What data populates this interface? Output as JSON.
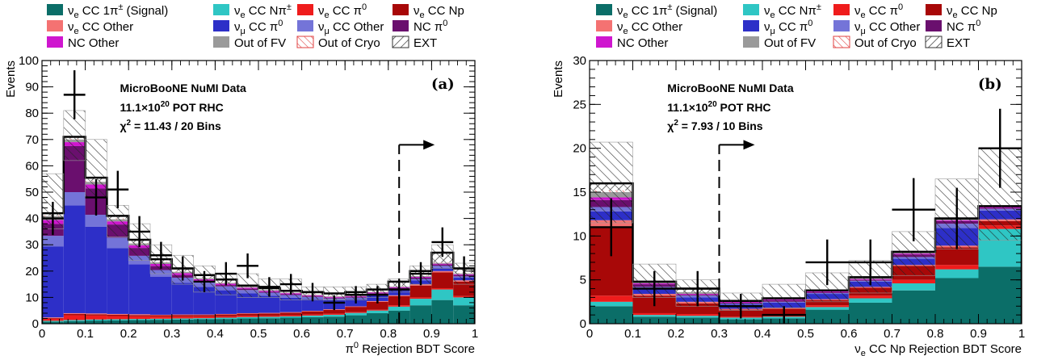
{
  "colors": {
    "sig": "#0b6e68",
    "ccNpi": "#2fc6c4",
    "ccPi0": "#ef1c1c",
    "ccNp": "#a80808",
    "ccOther": "#f47272",
    "numuPi0": "#2d2fc8",
    "numuOther": "#7474d8",
    "ncPi0": "#6a0f6e",
    "ncOther": "#cf16cf",
    "oofv": "#9a9a9a",
    "ooc": "#e04040",
    "ext": "#333333"
  },
  "legend": [
    {
      "key": "sig",
      "label": "νe CC 1π± (Signal)",
      "style": "solid"
    },
    {
      "key": "ccNpi",
      "label": "νe CC Nπ±",
      "style": "solid"
    },
    {
      "key": "ccPi0",
      "label": "νe CC   π0",
      "style": "solid"
    },
    {
      "key": "ccNp",
      "label": "νe CC Np",
      "style": "solid"
    },
    {
      "key": "ccOther",
      "label": "νe CC Other",
      "style": "solid"
    },
    {
      "key": "numuPi0",
      "label": "νμ CC   π0",
      "style": "solid"
    },
    {
      "key": "numuOther",
      "label": "νμ CC Other",
      "style": "solid"
    },
    {
      "key": "ncPi0",
      "label": "NC   π0",
      "style": "solid"
    },
    {
      "key": "ncOther",
      "label": "NC Other",
      "style": "solid"
    },
    {
      "key": "oofv",
      "label": "Out of FV",
      "style": "solid"
    },
    {
      "key": "ooc",
      "label": "Out of Cryo",
      "style": "hatch-red"
    },
    {
      "key": "ext",
      "label": "EXT",
      "style": "hatch-black"
    }
  ],
  "chart_data": [
    {
      "type": "bar",
      "panel": "(a)",
      "xlabel": "π0 Rejection BDT Score",
      "ylabel": "Events",
      "xlim": [
        0,
        1
      ],
      "ylim": [
        0,
        100
      ],
      "yticks": [
        0,
        10,
        20,
        30,
        40,
        50,
        60,
        70,
        80,
        90,
        100
      ],
      "xticks": [
        0,
        0.1,
        0.2,
        0.3,
        0.4,
        0.5,
        0.6,
        0.7,
        0.8,
        0.9,
        1
      ],
      "annotations": [
        "MicroBooNE NuMI Data",
        "11.1×10^20 POT RHC",
        "χ2 = 11.43 / 20 Bins"
      ],
      "cut": 0.825,
      "bin_edges": [
        0,
        0.05,
        0.1,
        0.15,
        0.2,
        0.25,
        0.3,
        0.35,
        0.4,
        0.45,
        0.5,
        0.55,
        0.6,
        0.65,
        0.7,
        0.75,
        0.8,
        0.85,
        0.9,
        0.95,
        1.0
      ],
      "stack_order": [
        "sig",
        "ccNpi",
        "ccPi0",
        "ccNp",
        "ccOther",
        "numuPi0",
        "numuOther",
        "ncPi0",
        "ncOther",
        "oofv",
        "ooc",
        "ext"
      ],
      "series": [
        {
          "name": "sig",
          "values": [
            0.8,
            1.0,
            1.2,
            1.3,
            1.4,
            1.5,
            1.6,
            1.7,
            1.8,
            2.0,
            2.1,
            2.3,
            2.5,
            2.7,
            3.2,
            4.0,
            5.0,
            7.0,
            9.0,
            7.0
          ]
        },
        {
          "name": "ccNpi",
          "values": [
            0.3,
            0.4,
            0.4,
            0.4,
            0.4,
            0.4,
            0.4,
            0.4,
            0.5,
            0.5,
            0.5,
            0.5,
            0.6,
            0.7,
            0.9,
            1.0,
            1.5,
            2.5,
            4.0,
            3.0
          ]
        },
        {
          "name": "ccPi0",
          "values": [
            0.8,
            1.8,
            1.5,
            1.2,
            1.0,
            0.8,
            0.7,
            0.6,
            0.5,
            0.5,
            0.4,
            0.4,
            0.4,
            0.4,
            0.3,
            0.3,
            0.5,
            0.5,
            0.5,
            0.5
          ]
        },
        {
          "name": "ccNp",
          "values": [
            0.3,
            0.5,
            0.5,
            0.5,
            0.5,
            0.5,
            0.6,
            0.6,
            0.7,
            0.8,
            0.9,
            1.0,
            1.2,
            1.5,
            2.0,
            3.0,
            3.5,
            4.5,
            6.0,
            5.5
          ]
        },
        {
          "name": "ccOther",
          "values": [
            0.2,
            0.3,
            0.3,
            0.3,
            0.3,
            0.2,
            0.2,
            0.2,
            0.2,
            0.2,
            0.2,
            0.2,
            0.2,
            0.2,
            0.2,
            0.3,
            0.3,
            0.5,
            0.5,
            0.5
          ]
        },
        {
          "name": "numuPi0",
          "values": [
            27.0,
            41.0,
            33.0,
            25.0,
            19.0,
            14.5,
            12.0,
            10.5,
            9.0,
            7.5,
            6.5,
            5.5,
            4.5,
            3.5,
            2.8,
            2.2,
            1.8,
            1.5,
            1.2,
            1.0
          ]
        },
        {
          "name": "numuOther",
          "values": [
            4.0,
            5.0,
            4.5,
            4.0,
            3.2,
            2.5,
            2.0,
            1.8,
            1.5,
            1.3,
            1.2,
            1.0,
            0.8,
            0.6,
            0.5,
            0.5,
            0.5,
            0.5,
            0.8,
            0.5
          ]
        },
        {
          "name": "ncPi0",
          "values": [
            4.5,
            17.5,
            10.0,
            5.0,
            3.0,
            1.5,
            1.0,
            0.5,
            0.5,
            0.5,
            0.3,
            0.3,
            0.3,
            0.3,
            0.3,
            0.3,
            0.5,
            0.5,
            0.5,
            0.5
          ]
        },
        {
          "name": "ncOther",
          "values": [
            1.5,
            1.5,
            1.5,
            1.2,
            1.0,
            0.8,
            0.7,
            0.6,
            0.5,
            0.4,
            0.4,
            0.4,
            0.3,
            0.3,
            0.3,
            0.3,
            0.3,
            0.3,
            0.3,
            0.3
          ]
        },
        {
          "name": "oofv",
          "values": [
            1.5,
            1.0,
            1.0,
            0.8,
            0.7,
            0.6,
            0.5,
            0.4,
            0.3,
            0.3,
            0.3,
            0.2,
            0.2,
            0.2,
            0.2,
            0.2,
            0.2,
            0.3,
            0.3,
            0.3
          ]
        },
        {
          "name": "ooc",
          "values": [
            0.3,
            0.3,
            0.3,
            0.3,
            0.2,
            0.2,
            0.2,
            0.2,
            0.2,
            0.2,
            0.2,
            0.2,
            0.2,
            0.2,
            0.2,
            0.2,
            0.2,
            0.2,
            0.2,
            0.2
          ]
        },
        {
          "name": "ext",
          "values": [
            0.8,
            0.7,
            1.3,
            1.0,
            1.2,
            1.0,
            1.1,
            1.0,
            1.1,
            0.3,
            0.5,
            0.5,
            0.8,
            0.9,
            1.1,
            0.7,
            1.7,
            1.7,
            3.7,
            1.7
          ]
        }
      ],
      "mc_err_lo": [
        36,
        62,
        48,
        33,
        24,
        19,
        15,
        12,
        11,
        10,
        10,
        9,
        9,
        9,
        9,
        10,
        12,
        15,
        21,
        15
      ],
      "mc_err_hi": [
        57,
        81,
        70,
        45,
        38,
        30,
        26,
        22,
        19,
        19,
        17,
        17,
        14,
        14,
        14,
        15,
        17,
        22,
        30,
        23
      ],
      "data": [
        40,
        87,
        48,
        51,
        35,
        26,
        21,
        16,
        19,
        22,
        14,
        15,
        12,
        8,
        11,
        11,
        13,
        19,
        31,
        21
      ],
      "data_err": [
        6.3,
        9.3,
        6.9,
        7.1,
        5.9,
        5.1,
        4.6,
        4.0,
        4.4,
        4.7,
        3.7,
        3.9,
        3.5,
        2.8,
        3.3,
        3.3,
        3.6,
        4.4,
        5.6,
        4.6
      ]
    },
    {
      "type": "bar",
      "panel": "(b)",
      "xlabel": "νe CC Np Rejection BDT Score",
      "ylabel": "Events",
      "xlim": [
        0,
        1
      ],
      "ylim": [
        0,
        30
      ],
      "yticks": [
        0,
        5,
        10,
        15,
        20,
        25,
        30
      ],
      "xticks": [
        0,
        0.1,
        0.2,
        0.3,
        0.4,
        0.5,
        0.6,
        0.7,
        0.8,
        0.9,
        1
      ],
      "annotations": [
        "MicroBooNE NuMI Data",
        "11.1×10^20 POT RHC",
        "χ2 = 7.93 / 10 Bins"
      ],
      "cut": 0.3,
      "bin_edges": [
        0,
        0.1,
        0.2,
        0.3,
        0.4,
        0.5,
        0.6,
        0.7,
        0.8,
        0.9,
        1.0
      ],
      "stack_order": [
        "sig",
        "ccNpi",
        "ccPi0",
        "ccNp",
        "ccOther",
        "numuPi0",
        "numuOther",
        "ncPi0",
        "ncOther",
        "oofv",
        "ooc",
        "ext"
      ],
      "series": [
        {
          "name": "sig",
          "values": [
            2.0,
            0.8,
            0.7,
            0.5,
            0.6,
            1.6,
            2.4,
            3.8,
            5.2,
            6.5
          ]
        },
        {
          "name": "ccNpi",
          "values": [
            0.5,
            0.2,
            0.2,
            0.2,
            0.2,
            0.3,
            0.5,
            0.8,
            1.0,
            4.3
          ]
        },
        {
          "name": "ccPi0",
          "values": [
            0.7,
            0.2,
            0.2,
            0.1,
            0.1,
            0.2,
            0.3,
            0.4,
            0.5,
            0.4
          ]
        },
        {
          "name": "ccNp",
          "values": [
            7.8,
            2.0,
            1.2,
            0.8,
            0.8,
            0.6,
            0.9,
            1.6,
            2.0,
            0.5
          ]
        },
        {
          "name": "ccOther",
          "values": [
            0.8,
            0.2,
            0.2,
            0.1,
            0.1,
            0.1,
            0.1,
            0.1,
            0.2,
            0.2
          ]
        },
        {
          "name": "numuPi0",
          "values": [
            1.0,
            0.6,
            0.5,
            0.5,
            0.6,
            0.6,
            0.6,
            0.7,
            2.0,
            1.0
          ]
        },
        {
          "name": "numuOther",
          "values": [
            0.5,
            0.2,
            0.2,
            0.1,
            0.1,
            0.1,
            0.1,
            0.2,
            0.5,
            0.2
          ]
        },
        {
          "name": "ncPi0",
          "values": [
            0.8,
            0.3,
            0.1,
            0.1,
            0.2,
            0.1,
            0.1,
            0.3,
            0.3,
            0.1
          ]
        },
        {
          "name": "ncOther",
          "values": [
            0.3,
            0.1,
            0.1,
            0.1,
            0.1,
            0.1,
            0.1,
            0.1,
            0.1,
            0.1
          ]
        },
        {
          "name": "oofv",
          "values": [
            0.6,
            0.2,
            0.2,
            0.1,
            0.1,
            0.1,
            0.1,
            0.2,
            0.2,
            0.1
          ]
        },
        {
          "name": "ooc",
          "values": [
            0.2,
            0.0,
            0.0,
            0.0,
            0.0,
            0.0,
            0.0,
            0.0,
            0.0,
            0.0
          ]
        },
        {
          "name": "ext",
          "values": [
            0.8,
            0.0,
            0.4,
            0.0,
            0.0,
            0.0,
            0.1,
            0.0,
            0.0,
            0.0
          ]
        }
      ],
      "mc_err_lo": [
        11.5,
        3.0,
        2.0,
        1.5,
        1.8,
        2.5,
        3.5,
        5.5,
        8.5,
        9.5
      ],
      "mc_err_hi": [
        20.7,
        6.8,
        5.0,
        3.5,
        4.5,
        5.8,
        7.2,
        10.5,
        16.5,
        20.0
      ],
      "data": [
        11,
        4,
        4,
        2,
        1,
        7,
        7,
        13,
        12,
        20
      ],
      "data_err": [
        3.3,
        2.0,
        2.0,
        1.4,
        1.0,
        2.6,
        2.6,
        3.6,
        3.5,
        4.5
      ]
    }
  ]
}
